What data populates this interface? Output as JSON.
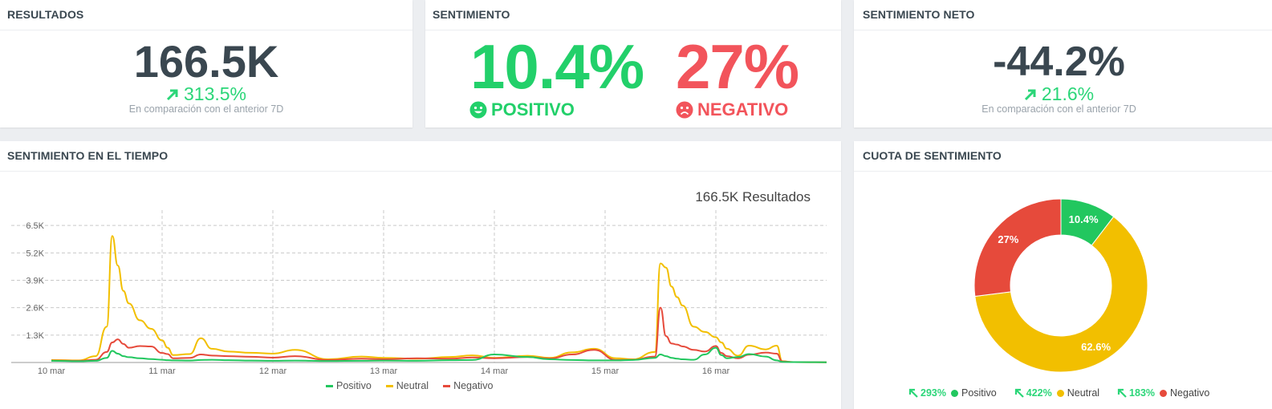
{
  "colors": {
    "positive": "#22c75f",
    "neutral": "#f2bf00",
    "negative": "#e64a3b",
    "green_text": "#2bd678",
    "red_text": "#f2545b",
    "dark": "#3a4750"
  },
  "resultados": {
    "title": "RESULTADOS",
    "value": "166.5K",
    "delta": "313.5%",
    "comparison": "En comparación con el anterior 7D"
  },
  "sentimiento": {
    "title": "SENTIMIENTO",
    "positive_value": "10.4%",
    "positive_label": "POSITIVO",
    "negative_value": "27%",
    "negative_label": "NEGATIVO"
  },
  "neto": {
    "title": "SENTIMIENTO NETO",
    "value": "-44.2%",
    "delta": "21.6%",
    "comparison": "En comparación con el anterior 7D"
  },
  "tiempo": {
    "title": "SENTIMIENTO EN EL TIEMPO",
    "total_label": "166.5K Resultados",
    "legend": [
      "Positivo",
      "Neutral",
      "Negativo"
    ]
  },
  "cuota": {
    "title": "CUOTA DE SENTIMIENTO",
    "legend": [
      {
        "change": "293%",
        "label": "Positivo"
      },
      {
        "change": "422%",
        "label": "Neutral"
      },
      {
        "change": "183%",
        "label": "Negativo"
      }
    ]
  },
  "chart_data": [
    {
      "type": "line",
      "ylim": [
        0,
        7000
      ],
      "yticks": [
        "1.3K",
        "2.6K",
        "3.9K",
        "5.2K",
        "6.5K"
      ],
      "ytick_values": [
        1300,
        2600,
        3900,
        5200,
        6500
      ],
      "xticks": [
        "10 mar",
        "11 mar",
        "12 mar",
        "13 mar",
        "14 mar",
        "15 mar",
        "16 mar"
      ],
      "xlim": [
        0,
        7
      ],
      "x": [
        0,
        0.25,
        0.4,
        0.5,
        0.55,
        0.6,
        0.65,
        0.7,
        0.8,
        0.9,
        1.0,
        1.05,
        1.1,
        1.25,
        1.35,
        1.45,
        1.6,
        1.8,
        2.0,
        2.2,
        2.5,
        2.8,
        3.0,
        3.3,
        3.6,
        3.8,
        4.0,
        4.3,
        4.5,
        4.7,
        4.9,
        5.1,
        5.25,
        5.45,
        5.5,
        5.55,
        5.6,
        5.65,
        5.7,
        5.8,
        5.9,
        6.0,
        6.05,
        6.1,
        6.2,
        6.3,
        6.45,
        6.55,
        6.6,
        6.7,
        7.0
      ],
      "series": [
        {
          "name": "Positivo",
          "values": [
            80,
            60,
            80,
            220,
            550,
            420,
            300,
            250,
            200,
            160,
            130,
            110,
            100,
            90,
            120,
            130,
            110,
            90,
            80,
            90,
            70,
            80,
            90,
            80,
            110,
            120,
            380,
            260,
            150,
            120,
            100,
            100,
            120,
            220,
            380,
            300,
            220,
            180,
            150,
            130,
            380,
            700,
            350,
            200,
            260,
            400,
            280,
            100,
            30,
            20,
            10
          ]
        },
        {
          "name": "Neutral",
          "values": [
            120,
            100,
            300,
            1700,
            6000,
            4600,
            3400,
            2800,
            2000,
            1600,
            1050,
            700,
            350,
            400,
            1150,
            650,
            520,
            460,
            420,
            600,
            150,
            280,
            220,
            180,
            260,
            340,
            220,
            320,
            220,
            480,
            650,
            200,
            150,
            500,
            4700,
            4500,
            3600,
            3100,
            2700,
            1700,
            1450,
            1200,
            950,
            650,
            320,
            800,
            620,
            800,
            60,
            20,
            10
          ]
        },
        {
          "name": "Negativo",
          "values": [
            90,
            80,
            130,
            500,
            950,
            1100,
            880,
            700,
            780,
            760,
            450,
            400,
            200,
            220,
            380,
            330,
            300,
            270,
            230,
            300,
            120,
            180,
            150,
            200,
            180,
            240,
            200,
            260,
            190,
            380,
            600,
            120,
            130,
            280,
            2600,
            1250,
            900,
            850,
            760,
            600,
            520,
            780,
            450,
            300,
            200,
            370,
            470,
            420,
            50,
            20,
            10
          ]
        }
      ]
    },
    {
      "type": "pie",
      "categories": [
        "Positivo",
        "Neutral",
        "Negativo"
      ],
      "values": [
        10.4,
        62.6,
        27
      ],
      "labels": [
        "10.4%",
        "62.6%",
        "27%"
      ]
    }
  ]
}
